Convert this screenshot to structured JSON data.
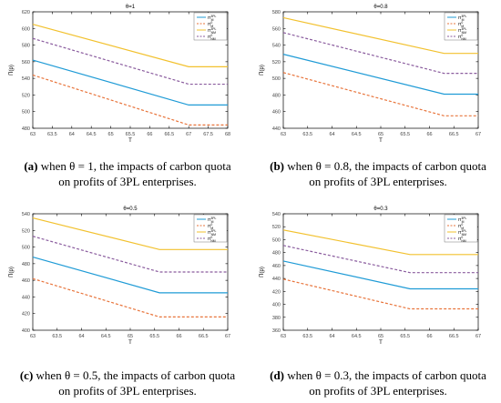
{
  "panels": [
    {
      "caption_tag": "(a)",
      "caption_text": "when  θ = 1, the impacts of carbon quota on profits of 3PL enterprises."
    },
    {
      "caption_tag": "(b)",
      "caption_text": "when  θ = 0.8, the impacts of carbon quota on profits of 3PL enterprises."
    },
    {
      "caption_tag": "(c)",
      "caption_text": "when  θ = 0.5, the impacts of carbon quota on profits of 3PL enterprises."
    },
    {
      "caption_tag": "(d)",
      "caption_text": "when  θ = 0.3, the impacts of carbon quota on profits of 3PL enterprises."
    }
  ],
  "colors": {
    "series1": "#1f9bd6",
    "series2": "#e8743b",
    "series3": "#f2c12e",
    "series4": "#8a5c9e",
    "axis": "#000000",
    "tick": "#444444"
  },
  "chart_data": [
    {
      "type": "line",
      "title": "θ=1",
      "xlabel": "T",
      "ylabel": "Π(p)",
      "xlim": [
        63,
        68
      ],
      "ylim": [
        480,
        620
      ],
      "xticks": [
        63,
        63.5,
        64,
        64.5,
        65,
        65.5,
        66,
        66.5,
        67,
        67.5,
        68
      ],
      "yticks": [
        480,
        500,
        520,
        540,
        560,
        580,
        600,
        620
      ],
      "legend": "top-right",
      "series": [
        {
          "name": "Π_M^3PL",
          "style": "solid",
          "x": [
            63,
            67,
            68
          ],
          "y": [
            562,
            508,
            508
          ]
        },
        {
          "name": "Π_M^0",
          "style": "dashed",
          "x": [
            63,
            67,
            68
          ],
          "y": [
            544,
            484,
            484
          ]
        },
        {
          "name": "Π_NM^3PL",
          "style": "solid",
          "x": [
            63,
            67,
            68
          ],
          "y": [
            605,
            554,
            554
          ]
        },
        {
          "name": "Π_NM^0",
          "style": "dashed",
          "x": [
            63,
            67,
            68
          ],
          "y": [
            588,
            533,
            533
          ]
        }
      ]
    },
    {
      "type": "line",
      "title": "θ=0.8",
      "xlabel": "T",
      "ylabel": "Π(p)",
      "xlim": [
        63,
        67
      ],
      "ylim": [
        440,
        580
      ],
      "xticks": [
        63,
        63.5,
        64,
        64.5,
        65,
        65.5,
        66,
        66.5,
        67
      ],
      "yticks": [
        440,
        460,
        480,
        500,
        520,
        540,
        560,
        580
      ],
      "legend": "top-right",
      "series": [
        {
          "name": "Π_M^3PL",
          "style": "solid",
          "x": [
            63,
            66.3,
            67
          ],
          "y": [
            529,
            481,
            481
          ]
        },
        {
          "name": "Π_M^0",
          "style": "dashed",
          "x": [
            63,
            66.3,
            67
          ],
          "y": [
            507,
            455,
            455
          ]
        },
        {
          "name": "Π_NM^3PL",
          "style": "solid",
          "x": [
            63,
            66.3,
            67
          ],
          "y": [
            573,
            530,
            530
          ]
        },
        {
          "name": "Π_NM^0",
          "style": "dashed",
          "x": [
            63,
            66.3,
            67
          ],
          "y": [
            555,
            506,
            506
          ]
        }
      ]
    },
    {
      "type": "line",
      "title": "θ=0.5",
      "xlabel": "T",
      "ylabel": "Π(p)",
      "xlim": [
        63,
        67
      ],
      "ylim": [
        400,
        540
      ],
      "xticks": [
        63,
        63.5,
        64,
        64.5,
        65,
        65.5,
        66,
        66.5,
        67
      ],
      "yticks": [
        400,
        420,
        440,
        460,
        480,
        500,
        520,
        540
      ],
      "legend": "top-right",
      "series": [
        {
          "name": "Π_M^3PL",
          "style": "solid",
          "x": [
            63,
            65.6,
            67
          ],
          "y": [
            488,
            445,
            445
          ]
        },
        {
          "name": "Π_M^0",
          "style": "dashed",
          "x": [
            63,
            65.6,
            67
          ],
          "y": [
            462,
            416,
            416
          ]
        },
        {
          "name": "Π_NM^3PL",
          "style": "solid",
          "x": [
            63,
            65.6,
            67
          ],
          "y": [
            535,
            497,
            497
          ]
        },
        {
          "name": "Π_NM^0",
          "style": "dashed",
          "x": [
            63,
            65.6,
            67
          ],
          "y": [
            513,
            470,
            470
          ]
        }
      ]
    },
    {
      "type": "line",
      "title": "θ=0.3",
      "xlabel": "T",
      "ylabel": "Π(p)",
      "xlim": [
        63,
        67
      ],
      "ylim": [
        360,
        540
      ],
      "xticks": [
        63,
        63.5,
        64,
        64.5,
        65,
        65.5,
        66,
        66.5,
        67
      ],
      "yticks": [
        360,
        380,
        400,
        420,
        440,
        460,
        480,
        500,
        520,
        540
      ],
      "legend": "top-right",
      "series": [
        {
          "name": "Π_M^3PL",
          "style": "solid",
          "x": [
            63,
            65.6,
            67
          ],
          "y": [
            467,
            424,
            424
          ]
        },
        {
          "name": "Π_M^0",
          "style": "dashed",
          "x": [
            63,
            65.6,
            67
          ],
          "y": [
            439,
            393,
            393
          ]
        },
        {
          "name": "Π_NM^3PL",
          "style": "solid",
          "x": [
            63,
            65.6,
            67
          ],
          "y": [
            515,
            477,
            477
          ]
        },
        {
          "name": "Π_NM^0",
          "style": "dashed",
          "x": [
            63,
            65.6,
            67
          ],
          "y": [
            491,
            449,
            449
          ]
        }
      ]
    }
  ]
}
